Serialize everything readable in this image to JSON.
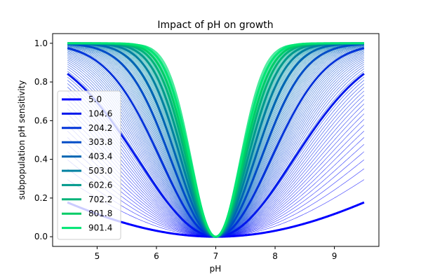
{
  "chart_data": {
    "type": "line",
    "title": "Impact of pH on growth",
    "xlabel": "pH",
    "ylabel": "subpopulation pH sensitivity",
    "xlim": [
      4.25,
      9.75
    ],
    "ylim": [
      -0.05,
      1.05
    ],
    "xticks": [
      "5",
      "6",
      "7",
      "8",
      "9"
    ],
    "xtick_values": [
      5,
      6,
      7,
      8,
      9
    ],
    "yticks": [
      "0.0",
      "0.2",
      "0.4",
      "0.6",
      "0.8",
      "1.0"
    ],
    "ytick_values": [
      0.0,
      0.2,
      0.4,
      0.6,
      0.8,
      1.0
    ],
    "x_range": [
      4.5,
      9.5
    ],
    "center_pH": 7.0,
    "model": "1 - exp(-(pH - 7)^2 / (2 * s^2)), with s shrinking as the parameter grows",
    "series": [
      {
        "name": "5.0",
        "color": "#0000ff",
        "sigma": 4.0
      },
      {
        "name": "104.6",
        "color": "#0018ec",
        "sigma": 1.3
      },
      {
        "name": "204.2",
        "color": "#0033d9",
        "sigma": 0.92
      },
      {
        "name": "303.8",
        "color": "#004dc7",
        "sigma": 0.75
      },
      {
        "name": "403.4",
        "color": "#0066b3",
        "sigma": 0.65
      },
      {
        "name": "503.0",
        "color": "#0080a0",
        "sigma": 0.58
      },
      {
        "name": "602.6",
        "color": "#00998c",
        "sigma": 0.53
      },
      {
        "name": "702.2",
        "color": "#00b379",
        "sigma": 0.49
      },
      {
        "name": "801.8",
        "color": "#00cc66",
        "sigma": 0.46
      },
      {
        "name": "901.4",
        "color": "#00e673",
        "sigma": 0.43
      }
    ],
    "family_count": 100,
    "family_sigma_range": [
      4.0,
      0.4
    ],
    "legend_location": "center-left",
    "grid": false
  }
}
